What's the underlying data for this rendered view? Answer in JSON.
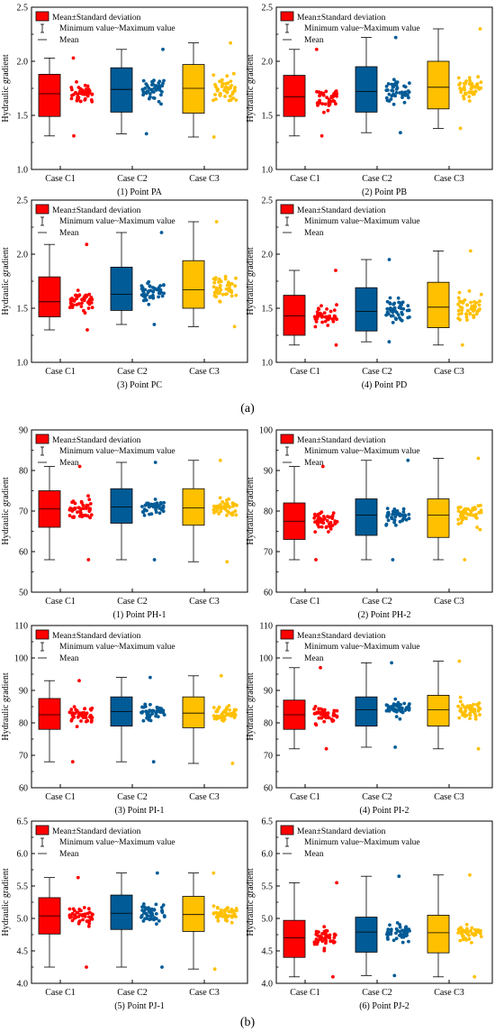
{
  "figure": {
    "group_labels": [
      "(a)",
      "(b)"
    ],
    "colors": {
      "C1": "#ff0000",
      "C2": "#005b96",
      "C3": "#ffc000"
    },
    "legend": {
      "box_label": "Mean±Standard deviation",
      "whisker_label": "Minimum value~Maximum value",
      "mean_label": "Mean"
    },
    "ylabel": "Hydraulic gradient"
  },
  "chart_data": [
    {
      "type": "box",
      "title": "(1) Point PA",
      "categories": [
        "Case C1",
        "Case C2",
        "Case C3"
      ],
      "ylim": [
        1.0,
        2.5
      ],
      "yticks": [
        1.0,
        1.5,
        2.0,
        2.5
      ],
      "series": [
        {
          "name": "Case C1",
          "min": 1.31,
          "q1": 1.49,
          "mean": 1.7,
          "q3": 1.88,
          "max": 2.03
        },
        {
          "name": "Case C2",
          "min": 1.33,
          "q1": 1.53,
          "mean": 1.74,
          "q3": 1.94,
          "max": 2.11
        },
        {
          "name": "Case C3",
          "min": 1.3,
          "q1": 1.52,
          "mean": 1.75,
          "q3": 1.97,
          "max": 2.17
        }
      ]
    },
    {
      "type": "box",
      "title": "(2) Point PB",
      "categories": [
        "Case C1",
        "Case C2",
        "Case C3"
      ],
      "ylim": [
        1.0,
        2.5
      ],
      "yticks": [
        1.0,
        1.5,
        2.0,
        2.5
      ],
      "series": [
        {
          "name": "Case C1",
          "min": 1.31,
          "q1": 1.49,
          "mean": 1.67,
          "q3": 1.87,
          "max": 2.11
        },
        {
          "name": "Case C2",
          "min": 1.34,
          "q1": 1.53,
          "mean": 1.72,
          "q3": 1.95,
          "max": 2.22
        },
        {
          "name": "Case C3",
          "min": 1.38,
          "q1": 1.56,
          "mean": 1.76,
          "q3": 2.0,
          "max": 2.3
        }
      ]
    },
    {
      "type": "box",
      "title": "(3) Point PC",
      "categories": [
        "Case C1",
        "Case C2",
        "Case C3"
      ],
      "ylim": [
        1.0,
        2.5
      ],
      "yticks": [
        1.0,
        1.5,
        2.0,
        2.5
      ],
      "series": [
        {
          "name": "Case C1",
          "min": 1.3,
          "q1": 1.42,
          "mean": 1.56,
          "q3": 1.79,
          "max": 2.09
        },
        {
          "name": "Case C2",
          "min": 1.35,
          "q1": 1.48,
          "mean": 1.63,
          "q3": 1.88,
          "max": 2.2
        },
        {
          "name": "Case C3",
          "min": 1.33,
          "q1": 1.5,
          "mean": 1.67,
          "q3": 1.94,
          "max": 2.3
        }
      ]
    },
    {
      "type": "box",
      "title": "(4) Point PD",
      "categories": [
        "Case C1",
        "Case C2",
        "Case C3"
      ],
      "ylim": [
        1.0,
        2.5
      ],
      "yticks": [
        1.0,
        1.5,
        2.0,
        2.5
      ],
      "series": [
        {
          "name": "Case C1",
          "min": 1.16,
          "q1": 1.25,
          "mean": 1.43,
          "q3": 1.62,
          "max": 1.85
        },
        {
          "name": "Case C2",
          "min": 1.19,
          "q1": 1.29,
          "mean": 1.47,
          "q3": 1.69,
          "max": 1.95
        },
        {
          "name": "Case C3",
          "min": 1.16,
          "q1": 1.32,
          "mean": 1.51,
          "q3": 1.74,
          "max": 2.03
        }
      ]
    },
    {
      "type": "box",
      "title": "(1) Point PH-1",
      "categories": [
        "Case C1",
        "Case C2",
        "Case C3"
      ],
      "ylim": [
        50,
        90
      ],
      "yticks": [
        50,
        60,
        70,
        80,
        90
      ],
      "series": [
        {
          "name": "Case C1",
          "min": 58.0,
          "q1": 66.0,
          "mean": 70.5,
          "q3": 75.0,
          "max": 81.0
        },
        {
          "name": "Case C2",
          "min": 58.0,
          "q1": 67.0,
          "mean": 71.0,
          "q3": 75.5,
          "max": 82.0
        },
        {
          "name": "Case C3",
          "min": 57.5,
          "q1": 66.5,
          "mean": 70.8,
          "q3": 75.5,
          "max": 82.5
        }
      ]
    },
    {
      "type": "box",
      "title": "(2) Point PH-2",
      "categories": [
        "Case C1",
        "Case C2",
        "Case C3"
      ],
      "ylim": [
        60,
        100
      ],
      "yticks": [
        60,
        70,
        80,
        90,
        100
      ],
      "series": [
        {
          "name": "Case C1",
          "min": 68.0,
          "q1": 73.0,
          "mean": 77.5,
          "q3": 82.0,
          "max": 91.0
        },
        {
          "name": "Case C2",
          "min": 68.0,
          "q1": 74.0,
          "mean": 79.0,
          "q3": 83.0,
          "max": 92.5
        },
        {
          "name": "Case C3",
          "min": 68.0,
          "q1": 73.5,
          "mean": 79.0,
          "q3": 83.0,
          "max": 93.0
        }
      ]
    },
    {
      "type": "box",
      "title": "(3) Point PI-1",
      "categories": [
        "Case C1",
        "Case C2",
        "Case C3"
      ],
      "ylim": [
        60,
        110
      ],
      "yticks": [
        60,
        70,
        80,
        90,
        100,
        110
      ],
      "series": [
        {
          "name": "Case C1",
          "min": 68.0,
          "q1": 78.0,
          "mean": 82.5,
          "q3": 87.5,
          "max": 93.0
        },
        {
          "name": "Case C2",
          "min": 68.0,
          "q1": 79.0,
          "mean": 83.5,
          "q3": 88.0,
          "max": 94.0
        },
        {
          "name": "Case C3",
          "min": 67.5,
          "q1": 78.5,
          "mean": 83.0,
          "q3": 88.0,
          "max": 94.5
        }
      ]
    },
    {
      "type": "box",
      "title": "(4) Point PI-2",
      "categories": [
        "Case C1",
        "Case C2",
        "Case C3"
      ],
      "ylim": [
        60,
        110
      ],
      "yticks": [
        60,
        70,
        80,
        90,
        100,
        110
      ],
      "series": [
        {
          "name": "Case C1",
          "min": 72.0,
          "q1": 78.0,
          "mean": 82.5,
          "q3": 87.0,
          "max": 97.0
        },
        {
          "name": "Case C2",
          "min": 72.5,
          "q1": 79.0,
          "mean": 84.0,
          "q3": 88.0,
          "max": 98.5
        },
        {
          "name": "Case C3",
          "min": 72.0,
          "q1": 79.0,
          "mean": 84.0,
          "q3": 88.5,
          "max": 99.0
        }
      ]
    },
    {
      "type": "box",
      "title": "(5) Point PJ-1",
      "categories": [
        "Case C1",
        "Case C2",
        "Case C3"
      ],
      "ylim": [
        4.0,
        6.5
      ],
      "yticks": [
        4.0,
        4.5,
        5.0,
        5.5,
        6.0,
        6.5
      ],
      "series": [
        {
          "name": "Case C1",
          "min": 4.25,
          "q1": 4.76,
          "mean": 5.04,
          "q3": 5.32,
          "max": 5.63
        },
        {
          "name": "Case C2",
          "min": 4.25,
          "q1": 4.83,
          "mean": 5.08,
          "q3": 5.36,
          "max": 5.7
        },
        {
          "name": "Case C3",
          "min": 4.22,
          "q1": 4.8,
          "mean": 5.06,
          "q3": 5.34,
          "max": 5.7
        }
      ]
    },
    {
      "type": "box",
      "title": "(6) Point PJ-2",
      "categories": [
        "Case C1",
        "Case C2",
        "Case C3"
      ],
      "ylim": [
        4.0,
        6.5
      ],
      "yticks": [
        4.0,
        4.5,
        5.0,
        5.5,
        6.0,
        6.5
      ],
      "series": [
        {
          "name": "Case C1",
          "min": 4.1,
          "q1": 4.4,
          "mean": 4.7,
          "q3": 4.97,
          "max": 5.55
        },
        {
          "name": "Case C2",
          "min": 4.12,
          "q1": 4.48,
          "mean": 4.79,
          "q3": 5.02,
          "max": 5.65
        },
        {
          "name": "Case C3",
          "min": 4.1,
          "q1": 4.47,
          "mean": 4.78,
          "q3": 5.05,
          "max": 5.67
        }
      ]
    }
  ]
}
